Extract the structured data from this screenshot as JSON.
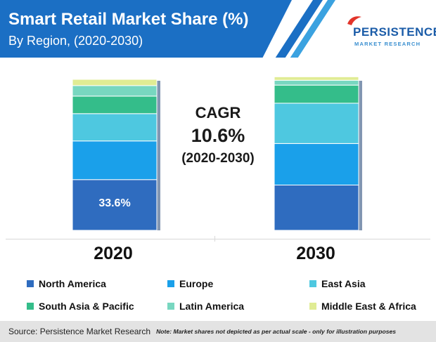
{
  "header": {
    "title": "Smart Retail Market Share (%)",
    "subtitle": "By Region, (2020-2030)"
  },
  "logo": {
    "word": "PERSISTENCE",
    "sub": "MARKET RESEARCH"
  },
  "cagr": {
    "label": "CAGR",
    "value": "10.6%",
    "period": "(2020-2030)"
  },
  "chart_data": {
    "type": "bar",
    "stacked": true,
    "categories": [
      "2020",
      "2030"
    ],
    "ylim": [
      0,
      100
    ],
    "grid": false,
    "legend_placement": "bottom",
    "series": [
      {
        "name": "North America",
        "color": "#2f6cbf",
        "values": [
          33.6,
          30.0
        ]
      },
      {
        "name": "Europe",
        "color": "#1aa0ea",
        "values": [
          25.6,
          27.5
        ]
      },
      {
        "name": "East Asia",
        "color": "#4ec8e0",
        "values": [
          18.1,
          26.7
        ]
      },
      {
        "name": "South Asia & Pacific",
        "color": "#34bd8a",
        "values": [
          11.6,
          12.0
        ]
      },
      {
        "name": "Latin America",
        "color": "#78d7c0",
        "values": [
          7.0,
          3.2
        ]
      },
      {
        "name": "Middle East & Africa",
        "color": "#e0ec94",
        "values": [
          4.1,
          2.3
        ]
      }
    ],
    "data_labels": [
      {
        "category": "2020",
        "series": "North America",
        "text": "33.6%"
      }
    ]
  },
  "legend": {
    "items": [
      "North America",
      "Europe",
      "East Asia",
      "South Asia & Pacific",
      "Latin America",
      "Middle East & Africa"
    ]
  },
  "footer": {
    "source": "Source: Persistence Market Research",
    "note": "Note: Market shares not depicted as per actual scale - only for illustration purposes"
  }
}
